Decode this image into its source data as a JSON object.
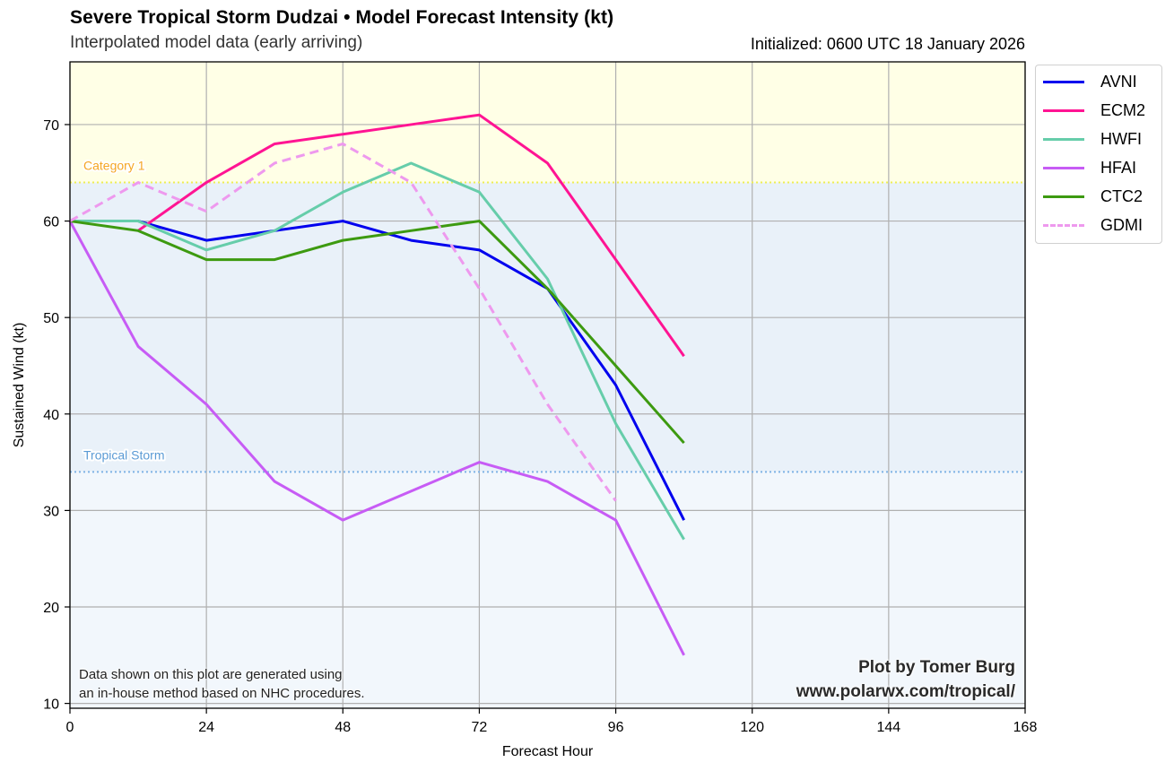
{
  "header": {
    "title": "Severe Tropical Storm Dudzai • Model Forecast Intensity (kt)",
    "subtitle": "Interpolated model data (early arriving)",
    "initialized": "Initialized: 0600 UTC 18 January 2026"
  },
  "footer": {
    "note_line1": "Data shown on this plot are generated using",
    "note_line2": "an in-house method based on NHC procedures.",
    "credit_line1": "Plot by Tomer Burg",
    "credit_line2": "www.polarwx.com/tropical/"
  },
  "chart_data": {
    "type": "line",
    "title": "Severe Tropical Storm Dudzai • Model Forecast Intensity (kt)",
    "subtitle": "Interpolated model data (early arriving)",
    "xlabel": "Forecast Hour",
    "ylabel": "Sustained Wind (kt)",
    "xlim": [
      0,
      168
    ],
    "ylim": [
      9.5,
      76.5
    ],
    "xticks": [
      0,
      24,
      48,
      72,
      96,
      120,
      144,
      168
    ],
    "yticks": [
      10,
      20,
      30,
      40,
      50,
      60,
      70
    ],
    "grid": true,
    "legend_position": "outside-top-right",
    "thresholds": [
      {
        "name": "Category 1",
        "value": 64,
        "color": "#f5a623",
        "line_color": "#eeee55",
        "fill_above": "#ffffe6"
      },
      {
        "name": "Tropical Storm",
        "value": 34,
        "color": "#5b9bd5",
        "line_color": "#7fb2e5",
        "fill_above": "#e9f1f9",
        "fill_below": "#f2f7fc"
      }
    ],
    "x": [
      0,
      12,
      24,
      36,
      48,
      60,
      72,
      84,
      96,
      108
    ],
    "series": [
      {
        "name": "AVNI",
        "color": "#0000ee",
        "dash": false,
        "values": [
          60,
          60,
          58,
          59,
          60,
          58,
          57,
          53,
          43,
          29
        ]
      },
      {
        "name": "ECM2",
        "color": "#ff1493",
        "dash": false,
        "values": [
          null,
          59,
          64,
          68,
          69,
          70,
          71,
          66,
          56,
          46
        ]
      },
      {
        "name": "HWFI",
        "color": "#66cdaa",
        "dash": false,
        "values": [
          60,
          60,
          57,
          59,
          63,
          66,
          63,
          54,
          39,
          27
        ]
      },
      {
        "name": "HFAI",
        "color": "#c75cf5",
        "dash": false,
        "values": [
          60,
          47,
          41,
          33,
          29,
          32,
          35,
          33,
          29,
          15
        ]
      },
      {
        "name": "CTC2",
        "color": "#3d9a10",
        "dash": false,
        "values": [
          60,
          59,
          56,
          56,
          58,
          59,
          60,
          53,
          45,
          37
        ]
      },
      {
        "name": "GDMI",
        "color": "#ee99ee",
        "dash": true,
        "values": [
          60,
          64,
          61,
          66,
          68,
          64,
          53,
          41,
          31,
          null
        ]
      }
    ]
  }
}
